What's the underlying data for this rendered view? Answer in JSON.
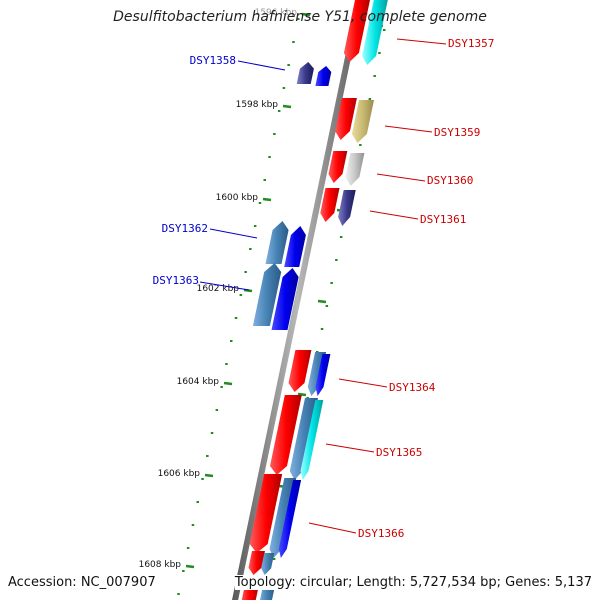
{
  "title": "Desulfitobacterium hafniense Y51, complete genome",
  "footer": {
    "accession": "Accession: NC_007907",
    "topology": "Topology: circular; Length: 5,727,534 bp; Genes: 5,137"
  },
  "colors": {
    "forward_label": "#0000cc",
    "reverse_label": "#cc0000",
    "backbone": "#8a8a8a",
    "tick": "#228b22"
  },
  "scale": {
    "ticks": [
      {
        "label": "1596 kbp"
      },
      {
        "label": "1598 kbp"
      },
      {
        "label": "1600 kbp"
      },
      {
        "label": "1602 kbp"
      },
      {
        "label": "1604 kbp"
      },
      {
        "label": "1606 kbp"
      },
      {
        "label": "1608 kbp"
      }
    ]
  },
  "genes": [
    {
      "id": "DSY1357",
      "strand": "reverse",
      "label": "DSY1357"
    },
    {
      "id": "DSY1358",
      "strand": "forward",
      "label": "DSY1358"
    },
    {
      "id": "DSY1359",
      "strand": "reverse",
      "label": "DSY1359"
    },
    {
      "id": "DSY1360",
      "strand": "reverse",
      "label": "DSY1360"
    },
    {
      "id": "DSY1361",
      "strand": "reverse",
      "label": "DSY1361"
    },
    {
      "id": "DSY1362",
      "strand": "forward",
      "label": "DSY1362"
    },
    {
      "id": "DSY1363",
      "strand": "forward",
      "label": "DSY1363"
    },
    {
      "id": "DSY1364",
      "strand": "reverse",
      "label": "DSY1364"
    },
    {
      "id": "DSY1365",
      "strand": "reverse",
      "label": "DSY1365"
    },
    {
      "id": "DSY1366",
      "strand": "reverse",
      "label": "DSY1366"
    }
  ]
}
